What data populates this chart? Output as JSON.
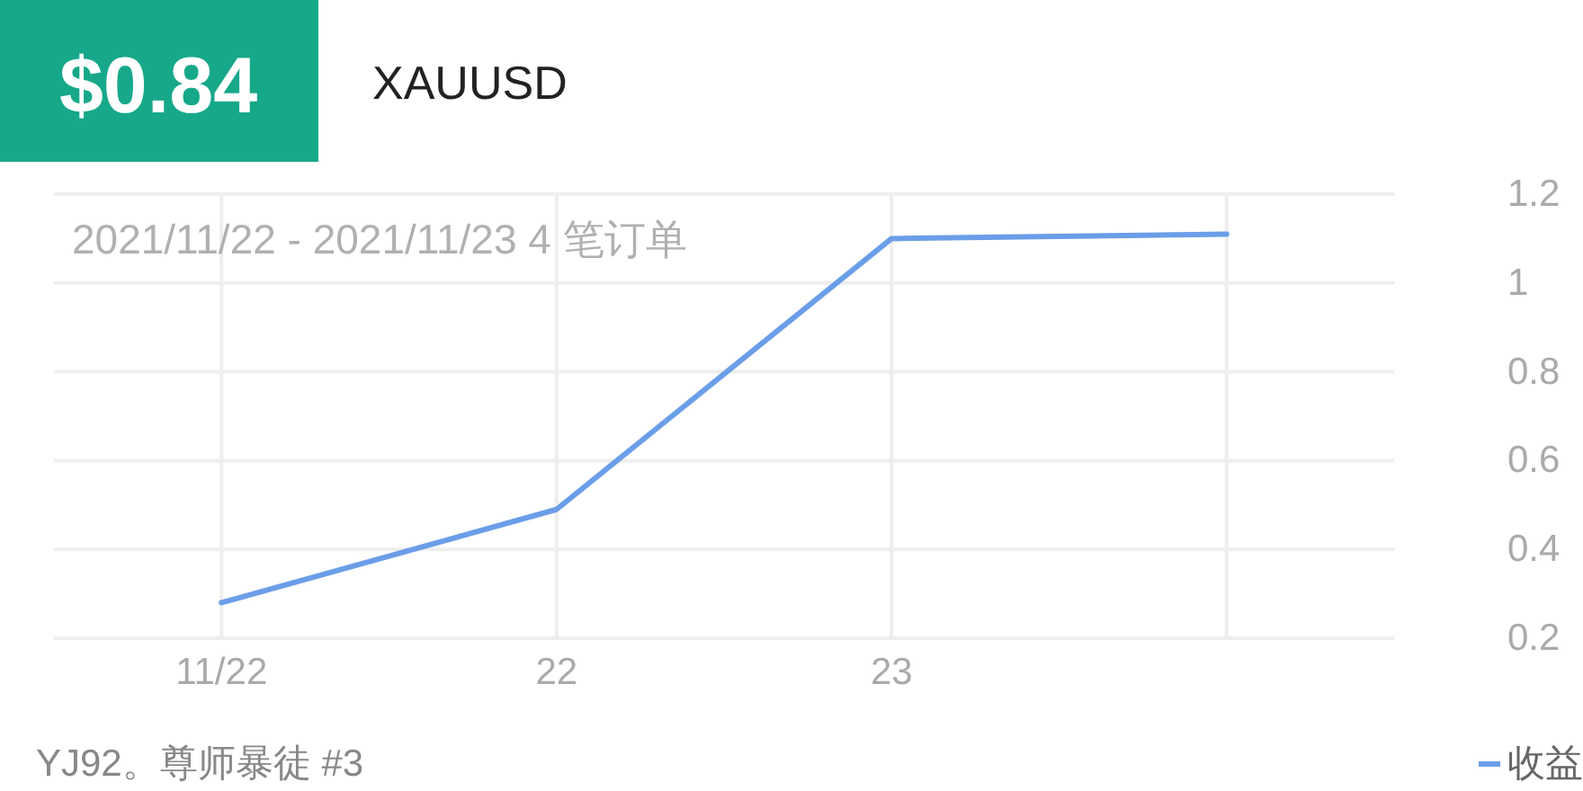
{
  "chart_data": {
    "type": "line",
    "title": "XAUUSD",
    "subtitle": "2021/11/22 - 2021/11/23 4 笔订单",
    "annotations": [
      "$0.84",
      "YJ92。尊师暴徒 #3"
    ],
    "categories": [
      "11/22",
      "22",
      "23",
      null
    ],
    "series": [
      {
        "name": "收益",
        "color": "#6b9ee8",
        "values": [
          0.28,
          0.49,
          1.1,
          1.11
        ]
      }
    ],
    "ylim": [
      0.2,
      1.2
    ],
    "yticks": [
      0.2,
      0.4,
      0.6,
      0.8,
      1,
      1.2
    ],
    "grid": true,
    "legend": "bottom right"
  }
}
